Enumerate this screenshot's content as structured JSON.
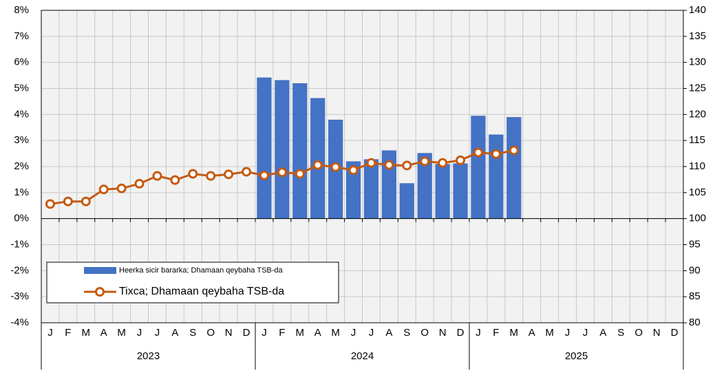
{
  "chart_data": {
    "type": "bar_line",
    "categories": [
      "J",
      "F",
      "M",
      "A",
      "M",
      "J",
      "J",
      "A",
      "S",
      "O",
      "N",
      "D",
      "J",
      "F",
      "M",
      "A",
      "M",
      "J",
      "J",
      "A",
      "S",
      "O",
      "N",
      "D",
      "J",
      "F",
      "M",
      "A",
      "M",
      "J",
      "J",
      "A",
      "S",
      "O",
      "N",
      "D"
    ],
    "years": [
      "2023",
      "2024",
      "2025"
    ],
    "series": [
      {
        "name": "Heerka sicir bararka; Dhamaan qeybaha TSB-da",
        "kind": "bar",
        "color": "#4472c4",
        "values": [
          null,
          null,
          null,
          null,
          null,
          null,
          null,
          null,
          null,
          null,
          null,
          null,
          5.42,
          5.32,
          5.2,
          4.63,
          3.8,
          2.2,
          2.28,
          2.62,
          1.36,
          2.52,
          2.1,
          2.12,
          3.95,
          3.23,
          3.9,
          null,
          null,
          null,
          null,
          null,
          null,
          null,
          null,
          null
        ]
      },
      {
        "name": "Tixca; Dhamaan qeybaha TSB-da",
        "kind": "line",
        "axis": "y2",
        "color": "#c55a11",
        "values": [
          102.8,
          103.3,
          103.3,
          105.6,
          105.8,
          106.7,
          108.2,
          107.4,
          108.6,
          108.2,
          108.5,
          109.0,
          108.3,
          108.9,
          108.6,
          110.3,
          109.9,
          109.3,
          110.7,
          110.3,
          110.2,
          111.0,
          110.7,
          111.2,
          112.7,
          112.4,
          113.1,
          null,
          null,
          null,
          null,
          null,
          null,
          null,
          null,
          null
        ]
      }
    ],
    "ylim": [
      -4,
      8
    ],
    "yticks": [
      {
        "value": -4,
        "label": "-4%"
      },
      {
        "value": -3,
        "label": "-3%"
      },
      {
        "value": -2,
        "label": "-2%"
      },
      {
        "value": -1,
        "label": "-1%"
      },
      {
        "value": 0,
        "label": "0%"
      },
      {
        "value": 1,
        "label": "1%"
      },
      {
        "value": 2,
        "label": "2%"
      },
      {
        "value": 3,
        "label": "3%"
      },
      {
        "value": 4,
        "label": "4%"
      },
      {
        "value": 5,
        "label": "5%"
      },
      {
        "value": 6,
        "label": "6%"
      },
      {
        "value": 7,
        "label": "7%"
      },
      {
        "value": 8,
        "label": "8%"
      }
    ],
    "y2lim": [
      80,
      140
    ],
    "y2ticks": [
      80,
      85,
      90,
      95,
      100,
      105,
      110,
      115,
      120,
      125,
      130,
      135,
      140
    ],
    "grid": true
  }
}
